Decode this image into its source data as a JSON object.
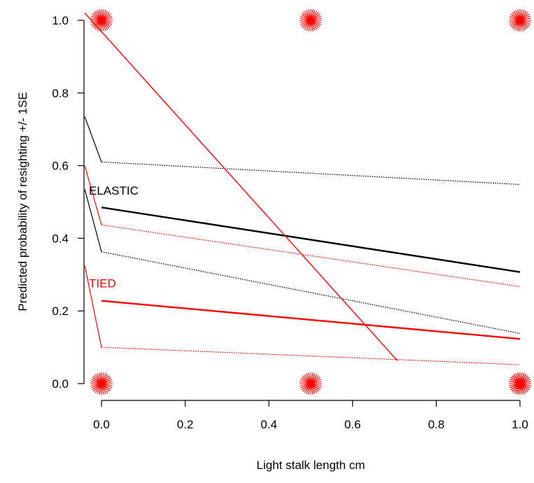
{
  "chart_data": {
    "type": "line",
    "xlabel": "Light stalk length cm",
    "ylabel": "Predicted probability of resighting +/- 1SE",
    "xlim": [
      -0.04,
      1.04
    ],
    "ylim": [
      0.0,
      1.0
    ],
    "x_ticks": [
      "0.0",
      "0.2",
      "0.4",
      "0.6",
      "0.8",
      "1.0"
    ],
    "y_ticks": [
      "0.0",
      "0.2",
      "0.4",
      "0.6",
      "0.8",
      "1.0"
    ],
    "grid": false,
    "legend": "none",
    "colors": {
      "elastic": "#000000",
      "tied": "#ff0000"
    },
    "annotations": [
      {
        "text": "ELASTIC",
        "x": -0.03,
        "y": 0.52,
        "color": "#000000"
      },
      {
        "text": "TIED",
        "x": -0.03,
        "y": 0.265,
        "color": "#ff0000"
      }
    ],
    "series": [
      {
        "x": [
          0.0,
          1.0
        ],
        "y": [
          0.485,
          0.307
        ],
        "color": "#000000",
        "style": "solid",
        "width": 2.4
      },
      {
        "x": [
          0.0,
          1.0
        ],
        "y": [
          0.61,
          0.548
        ],
        "color": "#000000",
        "style": "dotted",
        "width": 1.2
      },
      {
        "x": [
          0.0,
          1.0
        ],
        "y": [
          0.363,
          0.138
        ],
        "color": "#000000",
        "style": "dotted",
        "width": 1.2
      },
      {
        "x": [
          0.0,
          1.0
        ],
        "y": [
          0.228,
          0.123
        ],
        "color": "#ff0000",
        "style": "solid",
        "width": 2.4
      },
      {
        "x": [
          0.0,
          1.0
        ],
        "y": [
          0.437,
          0.267
        ],
        "color": "#ff0000",
        "style": "dotted",
        "width": 1.2
      },
      {
        "x": [
          0.0,
          1.0
        ],
        "y": [
          0.1,
          0.052
        ],
        "color": "#ff0000",
        "style": "dotted",
        "width": 1.2
      },
      {
        "x": [
          -0.04,
          0.0
        ],
        "y": [
          0.735,
          0.61
        ],
        "color": "#000000",
        "style": "solid",
        "width": 1.2
      },
      {
        "x": [
          -0.04,
          0.0
        ],
        "y": [
          0.535,
          0.363
        ],
        "color": "#000000",
        "style": "solid",
        "width": 1.2
      },
      {
        "x": [
          -0.04,
          0.0
        ],
        "y": [
          0.6,
          0.437
        ],
        "color": "#ff0000",
        "style": "solid",
        "width": 1.2
      },
      {
        "x": [
          -0.04,
          0.0
        ],
        "y": [
          0.325,
          0.1
        ],
        "color": "#ff0000",
        "style": "solid",
        "width": 1.2
      },
      {
        "x": [
          -0.04,
          0.707
        ],
        "y": [
          1.02,
          0.063
        ],
        "color": "#ff0000",
        "style": "solid",
        "width": 1.4
      }
    ],
    "points": [
      {
        "x": 0.0,
        "y": 1.0,
        "color": "#ff0000"
      },
      {
        "x": 0.5,
        "y": 1.0,
        "color": "#ff0000"
      },
      {
        "x": 1.0,
        "y": 1.0,
        "color": "#ff0000"
      },
      {
        "x": 0.0,
        "y": 0.0,
        "color": "#ff0000"
      },
      {
        "x": 0.5,
        "y": 0.0,
        "color": "#ff0000"
      },
      {
        "x": 1.0,
        "y": 0.0,
        "color": "#ff0000"
      },
      {
        "x": 1.0,
        "y": 0.0,
        "color": "#ff0000"
      }
    ]
  }
}
